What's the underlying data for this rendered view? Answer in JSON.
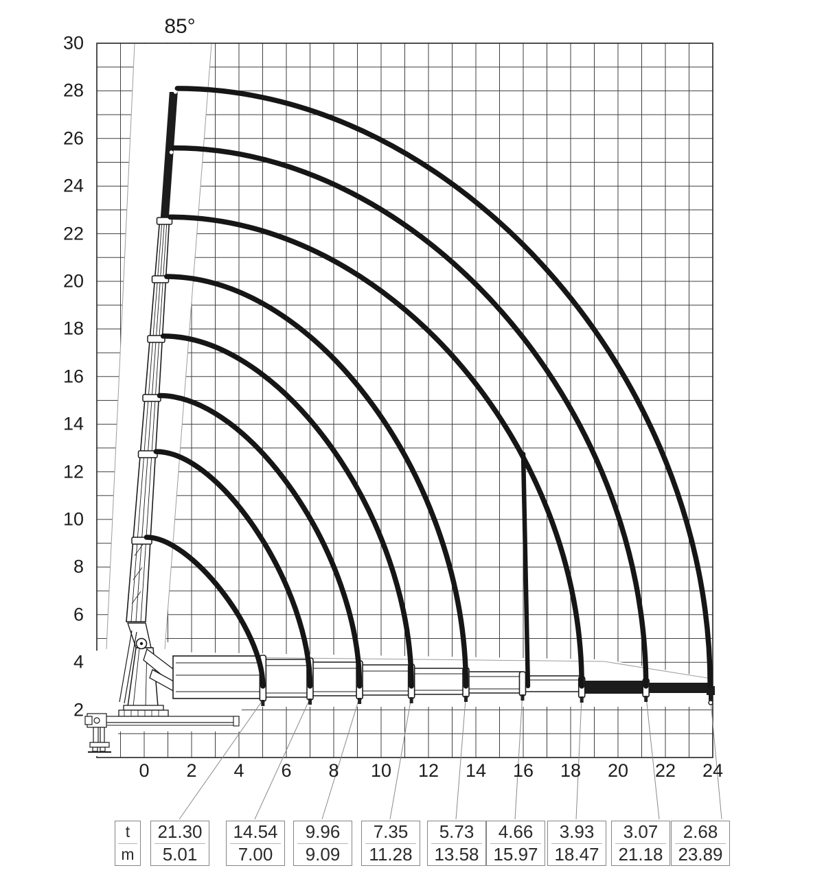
{
  "annotations": {
    "boom_angle_label": "85°"
  },
  "axes": {
    "y_ticks": [
      30,
      28,
      26,
      24,
      22,
      20,
      18,
      16,
      14,
      12,
      10,
      8,
      6,
      4,
      2
    ],
    "x_ticks": [
      0,
      2,
      4,
      6,
      8,
      10,
      12,
      14,
      16,
      18,
      20,
      22,
      24
    ]
  },
  "table": {
    "header": {
      "t": "t",
      "m": "m"
    },
    "entries": [
      {
        "t": "21.30",
        "m": "5.01"
      },
      {
        "t": "14.54",
        "m": "7.00"
      },
      {
        "t": "9.96",
        "m": "9.09"
      },
      {
        "t": "7.35",
        "m": "11.28"
      },
      {
        "t": "5.73",
        "m": "13.58"
      },
      {
        "t": "4.66",
        "m": "15.97"
      },
      {
        "t": "3.93",
        "m": "18.47"
      },
      {
        "t": "3.07",
        "m": "21.18"
      },
      {
        "t": "2.68",
        "m": "23.89"
      }
    ]
  },
  "chart_data": {
    "type": "line",
    "subtype": "crane-load-envelope-diagram",
    "title": "",
    "boom_angle_deg": 85,
    "x_range": [
      -2,
      24
    ],
    "y_range": [
      0,
      30
    ],
    "grid_step_m": 1,
    "capacities": [
      {
        "load_t": 21.3,
        "outreach_m": 5.01
      },
      {
        "load_t": 14.54,
        "outreach_m": 7.0
      },
      {
        "load_t": 9.96,
        "outreach_m": 9.09
      },
      {
        "load_t": 7.35,
        "outreach_m": 11.28
      },
      {
        "load_t": 5.73,
        "outreach_m": 13.58
      },
      {
        "load_t": 4.66,
        "outreach_m": 15.97
      },
      {
        "load_t": 3.93,
        "outreach_m": 18.47
      },
      {
        "load_t": 3.07,
        "outreach_m": 21.18
      },
      {
        "load_t": 2.68,
        "outreach_m": 23.89
      }
    ],
    "envelope_arcs": [
      {
        "start": [
          1.4,
          28.1
        ],
        "end": [
          23.89,
          3.0
        ]
      },
      {
        "start": [
          1.25,
          25.6
        ],
        "end": [
          21.18,
          3.0
        ]
      },
      {
        "start": [
          1.1,
          22.7
        ],
        "end": [
          18.47,
          3.0
        ],
        "branch": {
          "from": [
            16.0,
            12.75
          ],
          "to": [
            16.2,
            3.0
          ]
        }
      },
      {
        "start": [
          0.95,
          20.2
        ],
        "end": [
          13.58,
          3.0
        ]
      },
      {
        "start": [
          0.8,
          17.7
        ],
        "end": [
          11.28,
          3.0
        ]
      },
      {
        "start": [
          0.65,
          15.2
        ],
        "end": [
          9.09,
          3.0
        ]
      },
      {
        "start": [
          0.5,
          12.85
        ],
        "end": [
          7.0,
          3.0
        ]
      },
      {
        "start": [
          0.1,
          9.25
        ],
        "end": [
          5.01,
          3.0
        ]
      }
    ]
  }
}
